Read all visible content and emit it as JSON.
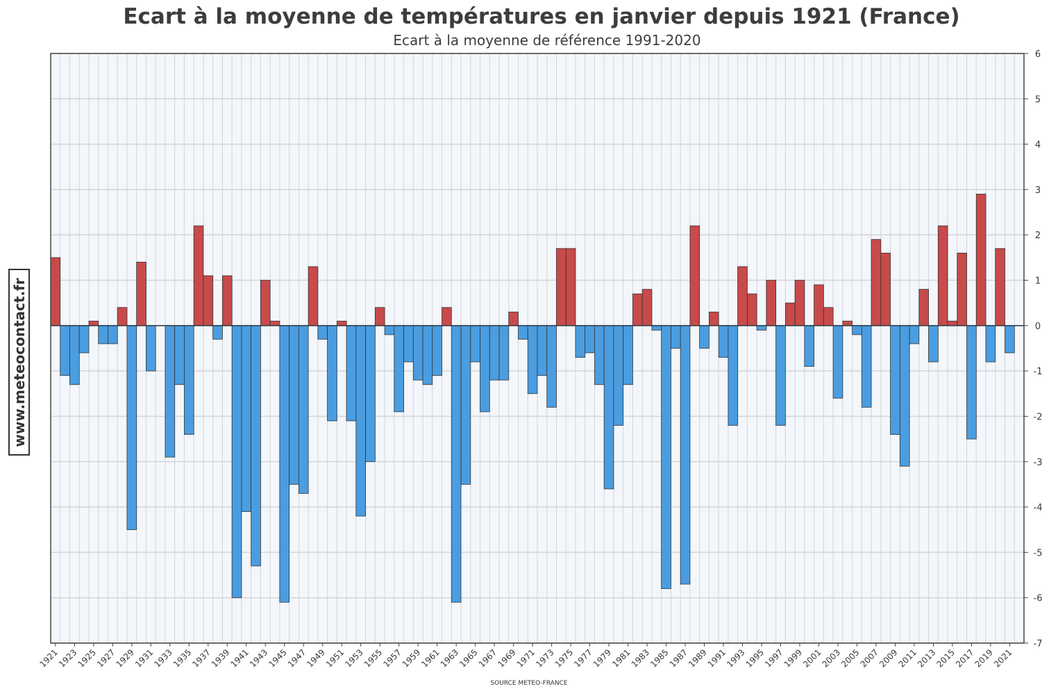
{
  "chart_data": {
    "type": "bar",
    "title": "Ecart à la moyenne de températures en janvier depuis 1921 (France)",
    "subtitle": "Ecart à la moyenne de référence 1991-2020",
    "xlabel": "",
    "ylabel": "",
    "source": "SOURCE METEO-FRANCE",
    "watermark": "www.meteocontact.fr",
    "ylim": [
      -7,
      6
    ],
    "yticks": [
      6,
      5,
      4,
      3,
      2,
      1,
      0,
      -1,
      -2,
      -3,
      -4,
      -5,
      -6,
      -7
    ],
    "y_axis_position": "right",
    "grid": true,
    "x_start": 1921,
    "x_end": 2022,
    "x_tick_labels": [
      "1921",
      "1923",
      "1925",
      "1927",
      "1929",
      "1931",
      "1933",
      "1935",
      "1937",
      "1939",
      "1941",
      "1943",
      "1945",
      "1947",
      "1949",
      "1951",
      "1953",
      "1955",
      "1957",
      "1959",
      "1961",
      "1963",
      "1965",
      "1967",
      "1969",
      "1971",
      "1973",
      "1975",
      "1977",
      "1979",
      "1981",
      "1983",
      "1985",
      "1987",
      "1989",
      "1991",
      "1993",
      "1995",
      "1997",
      "1999",
      "2001",
      "2003",
      "2005",
      "2007",
      "2009",
      "2011",
      "2013",
      "2015",
      "2017",
      "2019",
      "2021"
    ],
    "colors": {
      "positive": "#c84a4a",
      "negative": "#4a9de0",
      "grid": "#d2d4d8",
      "plot_bg": "#f3f6fb"
    },
    "years": [
      1921,
      1922,
      1923,
      1924,
      1925,
      1926,
      1927,
      1928,
      1929,
      1930,
      1931,
      1932,
      1933,
      1934,
      1935,
      1936,
      1937,
      1938,
      1939,
      1940,
      1941,
      1942,
      1943,
      1944,
      1945,
      1946,
      1947,
      1948,
      1949,
      1950,
      1951,
      1952,
      1953,
      1954,
      1955,
      1956,
      1957,
      1958,
      1959,
      1960,
      1961,
      1962,
      1963,
      1964,
      1965,
      1966,
      1967,
      1968,
      1969,
      1970,
      1971,
      1972,
      1973,
      1974,
      1975,
      1976,
      1977,
      1978,
      1979,
      1980,
      1981,
      1982,
      1983,
      1984,
      1985,
      1986,
      1987,
      1988,
      1989,
      1990,
      1991,
      1992,
      1993,
      1994,
      1995,
      1996,
      1997,
      1998,
      1999,
      2000,
      2001,
      2002,
      2003,
      2004,
      2005,
      2006,
      2007,
      2008,
      2009,
      2010,
      2011,
      2012,
      2013,
      2014,
      2015,
      2016,
      2017,
      2018,
      2019,
      2020,
      2021,
      2022
    ],
    "values": [
      1.5,
      -1.1,
      -1.3,
      -0.6,
      0.1,
      -0.4,
      -0.4,
      0.4,
      -4.5,
      1.4,
      -1.0,
      0,
      -2.9,
      -1.3,
      -2.4,
      2.2,
      1.1,
      -0.3,
      1.1,
      -6.0,
      -4.1,
      -5.3,
      1.0,
      0.1,
      -6.1,
      -3.5,
      -3.7,
      1.3,
      -0.3,
      -2.1,
      0.1,
      -2.1,
      -4.2,
      -3.0,
      0.4,
      -0.2,
      -1.9,
      -0.8,
      -1.2,
      -1.3,
      -1.1,
      0.4,
      -6.1,
      -3.5,
      -0.8,
      -1.9,
      -1.2,
      -1.2,
      0.3,
      -0.3,
      -1.5,
      -1.1,
      -1.8,
      1.7,
      1.7,
      -0.7,
      -0.6,
      -1.3,
      -3.6,
      -2.2,
      -1.3,
      0.7,
      0.8,
      -0.1,
      -5.8,
      -0.5,
      -5.7,
      2.2,
      -0.5,
      0.3,
      -0.7,
      -2.2,
      1.3,
      0.7,
      -0.1,
      1.0,
      -2.2,
      0.5,
      1.0,
      -0.9,
      0.9,
      0.4,
      -1.6,
      0.1,
      -0.2,
      -1.8,
      1.9,
      1.6,
      -2.4,
      -3.1,
      -0.4,
      0.8,
      -0.8,
      2.2,
      0.1,
      1.6,
      -2.5,
      2.9,
      -0.8,
      1.7,
      -0.6,
      0
    ]
  }
}
